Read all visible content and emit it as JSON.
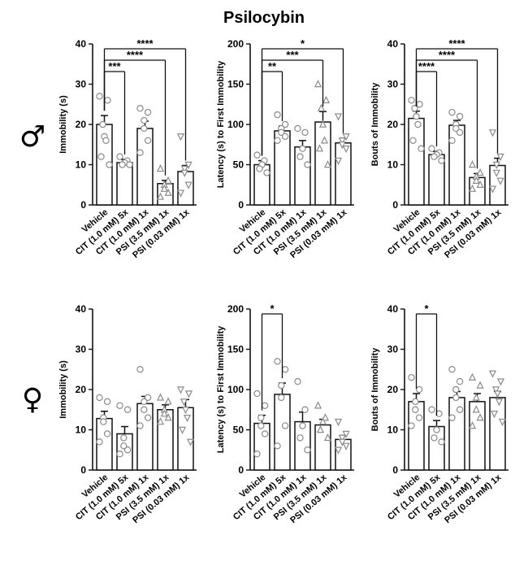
{
  "title": "Psilocybin",
  "rows": [
    {
      "symbol": "♂",
      "symbol_name": "male-symbol"
    },
    {
      "symbol": "♀",
      "symbol_name": "female-symbol"
    }
  ],
  "colors": {
    "ink": "#111111",
    "marker_edge": "#8a8a8a",
    "bar_fill": "#ffffff"
  },
  "chart_data": [
    {
      "type": "bar",
      "sex": "male",
      "row": 0,
      "col": 0,
      "ylabel": "Immobility (s)",
      "ylim": [
        0,
        40
      ],
      "yticks": [
        0,
        10,
        20,
        30,
        40
      ],
      "categories": [
        "Vehicle",
        "CIT (1.0 mM) 5x",
        "CIT (1.0 mM) 1x",
        "PSI (3.5 mM) 1x",
        "PSI (0.03 mM) 1x"
      ],
      "markers": [
        "circle",
        "circle",
        "circle",
        "triangle-up",
        "triangle-down"
      ],
      "values": [
        20,
        10.5,
        19,
        5.3,
        8.3
      ],
      "errors": [
        2.2,
        0.8,
        1.8,
        0.8,
        1.5
      ],
      "points": [
        [
          27,
          26,
          20,
          17,
          16,
          12,
          10
        ],
        [
          12,
          11,
          10.5,
          10,
          10
        ],
        [
          24,
          23,
          21,
          19,
          16,
          13
        ],
        [
          9,
          6,
          5,
          4,
          3,
          2
        ],
        [
          17,
          10,
          9,
          8,
          5,
          3
        ]
      ],
      "significance": [
        {
          "from": 0,
          "to": 4,
          "label": "****"
        },
        {
          "from": 0,
          "to": 3,
          "label": "****"
        },
        {
          "from": 0,
          "to": 1,
          "label": "***"
        }
      ]
    },
    {
      "type": "bar",
      "sex": "male",
      "row": 0,
      "col": 1,
      "ylabel": "Latency (s) to First Immobility",
      "ylim": [
        0,
        200
      ],
      "yticks": [
        0,
        50,
        100,
        150,
        200
      ],
      "categories": [
        "Vehicle",
        "CIT (1.0 mM) 5x",
        "CIT (1.0 mM) 1x",
        "PSI (3.5 mM) 1x",
        "PSI (0.03 mM) 1x"
      ],
      "markers": [
        "circle",
        "circle",
        "circle",
        "triangle-up",
        "triangle-down"
      ],
      "values": [
        50,
        92,
        72,
        103,
        77
      ],
      "errors": [
        5,
        6,
        8,
        13,
        6
      ],
      "points": [
        [
          62,
          55,
          50,
          45,
          40
        ],
        [
          112,
          100,
          95,
          90,
          85,
          80
        ],
        [
          95,
          90,
          70,
          60,
          50
        ],
        [
          150,
          130,
          120,
          100,
          80,
          70,
          50
        ],
        [
          110,
          85,
          80,
          75,
          70,
          55
        ]
      ],
      "significance": [
        {
          "from": 0,
          "to": 4,
          "label": "*"
        },
        {
          "from": 0,
          "to": 3,
          "label": "***"
        },
        {
          "from": 0,
          "to": 1,
          "label": "**"
        }
      ]
    },
    {
      "type": "bar",
      "sex": "male",
      "row": 0,
      "col": 2,
      "ylabel": "Bouts of Immobility",
      "ylim": [
        0,
        40
      ],
      "yticks": [
        0,
        10,
        20,
        30,
        40
      ],
      "categories": [
        "Vehicle",
        "CIT (1.0 mM) 5x",
        "CIT (1.0 mM) 1x",
        "PSI (3.5 mM) 1x",
        "PSI (0.03 mM) 1x"
      ],
      "markers": [
        "circle",
        "circle",
        "circle",
        "triangle-up",
        "triangle-down"
      ],
      "values": [
        21.5,
        12.5,
        19.8,
        6.8,
        9.8
      ],
      "errors": [
        1.8,
        0.8,
        1.2,
        1,
        1.8
      ],
      "points": [
        [
          26,
          25,
          24,
          22,
          20,
          16,
          14
        ],
        [
          14,
          13,
          12.5,
          12,
          11
        ],
        [
          23,
          22,
          20,
          19,
          18,
          16
        ],
        [
          10,
          8,
          7,
          6,
          5,
          4
        ],
        [
          18,
          12,
          10,
          8,
          6,
          4
        ]
      ],
      "significance": [
        {
          "from": 0,
          "to": 4,
          "label": "****"
        },
        {
          "from": 0,
          "to": 3,
          "label": "****"
        },
        {
          "from": 0,
          "to": 1,
          "label": "****"
        }
      ]
    },
    {
      "type": "bar",
      "sex": "female",
      "row": 1,
      "col": 0,
      "ylabel": "Immobility (s)",
      "ylim": [
        0,
        40
      ],
      "yticks": [
        0,
        10,
        20,
        30,
        40
      ],
      "categories": [
        "Vehicle",
        "CIT (1.0 mM) 5x",
        "CIT (1.0 mM) 1x",
        "PSI (3.5 mM) 1x",
        "PSI (0.03 mM) 1x"
      ],
      "markers": [
        "circle",
        "circle",
        "circle",
        "triangle-up",
        "triangle-down"
      ],
      "values": [
        12.8,
        9,
        16.5,
        15,
        15.5
      ],
      "errors": [
        1.8,
        1.8,
        1.8,
        1.2,
        2
      ],
      "points": [
        [
          18,
          17,
          13,
          12,
          9,
          7
        ],
        [
          16,
          15,
          8,
          6,
          5,
          4
        ],
        [
          25,
          18,
          17,
          15,
          13,
          11
        ],
        [
          18,
          17,
          15,
          14,
          13,
          12
        ],
        [
          20,
          19,
          17,
          15,
          13,
          10,
          7
        ]
      ],
      "significance": []
    },
    {
      "type": "bar",
      "sex": "female",
      "row": 1,
      "col": 1,
      "ylabel": "Latency (s) to First Immobility",
      "ylim": [
        0,
        200
      ],
      "yticks": [
        0,
        50,
        100,
        150,
        200
      ],
      "categories": [
        "Vehicle",
        "CIT (1.0 mM) 5x",
        "CIT (1.0 mM) 1x",
        "PSI (3.5 mM) 1x",
        "PSI (0.03 mM) 1x"
      ],
      "markers": [
        "circle",
        "circle",
        "circle",
        "triangle-up",
        "triangle-down"
      ],
      "values": [
        58,
        94,
        60,
        56,
        38
      ],
      "errors": [
        10,
        14,
        12,
        7,
        5
      ],
      "points": [
        [
          95,
          80,
          65,
          55,
          45,
          20
        ],
        [
          135,
          125,
          105,
          90,
          55,
          30
        ],
        [
          110,
          75,
          55,
          40,
          25
        ],
        [
          80,
          65,
          60,
          50,
          40
        ],
        [
          60,
          45,
          40,
          35,
          30,
          25
        ]
      ],
      "significance": [
        {
          "from": 0,
          "to": 1,
          "label": "*"
        }
      ]
    },
    {
      "type": "bar",
      "sex": "female",
      "row": 1,
      "col": 2,
      "ylabel": "Bouts of Immobility",
      "ylim": [
        0,
        40
      ],
      "yticks": [
        0,
        10,
        20,
        30,
        40
      ],
      "categories": [
        "Vehicle",
        "CIT (1.0 mM) 5x",
        "CIT (1.0 mM) 1x",
        "PSI (3.5 mM) 1x",
        "PSI (0.03 mM) 1x"
      ],
      "markers": [
        "circle",
        "circle",
        "circle",
        "triangle-up",
        "triangle-down"
      ],
      "values": [
        17,
        10.8,
        18,
        17,
        18
      ],
      "errors": [
        2,
        1.5,
        1.5,
        2,
        1.5
      ],
      "points": [
        [
          23,
          20,
          17,
          15,
          13,
          11
        ],
        [
          15,
          14,
          10,
          8,
          7
        ],
        [
          25,
          22,
          20,
          18,
          15,
          13
        ],
        [
          23,
          21,
          18,
          15,
          13,
          11
        ],
        [
          24,
          22,
          20,
          19,
          17,
          14,
          12
        ]
      ],
      "significance": [
        {
          "from": 0,
          "to": 1,
          "label": "*"
        }
      ]
    }
  ]
}
